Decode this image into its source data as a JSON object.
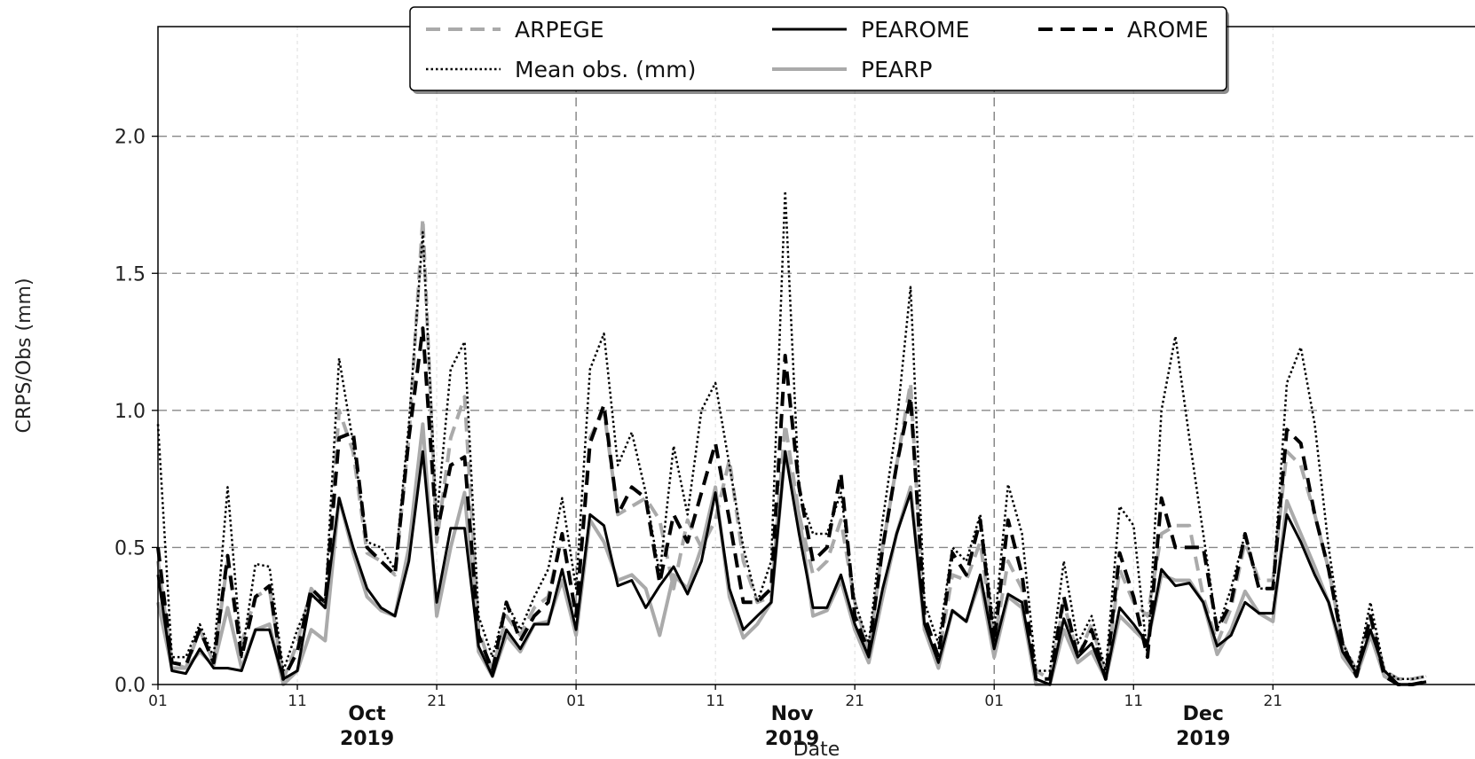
{
  "chart_data": {
    "type": "line",
    "xlabel": "Date",
    "ylabel": "CRPS/Obs (mm)",
    "ylim": [
      0,
      2.4
    ],
    "yticks": [
      "0.0",
      "0.5",
      "1.0",
      "1.5",
      "2.0"
    ],
    "xticks": [
      "01",
      "11",
      "21",
      "01",
      "11",
      "21",
      "01",
      "11",
      "21"
    ],
    "xticks_day": [
      0,
      10,
      20,
      30,
      40,
      50,
      60,
      70,
      80
    ],
    "months": [
      {
        "name": "Oct",
        "year": "2019",
        "day": 15
      },
      {
        "name": "Nov",
        "year": "2019",
        "day": 45.5
      },
      {
        "name": "Dec",
        "year": "2019",
        "day": 75
      }
    ],
    "x_start": "2019-10-01",
    "x_end": "2019-12-31",
    "legend_position": "top-center",
    "grid": true,
    "series": [
      {
        "name": "ARPEGE",
        "color": "#aaaaaa",
        "style": "dashed",
        "width": 4,
        "values": [
          0.45,
          0.08,
          0.06,
          0.2,
          0.08,
          0.45,
          0.15,
          0.32,
          0.35,
          0.02,
          0.15,
          0.35,
          0.28,
          1.0,
          0.85,
          0.48,
          0.45,
          0.4,
          0.9,
          1.7,
          0.52,
          0.9,
          1.05,
          0.2,
          0.05,
          0.25,
          0.18,
          0.28,
          0.32,
          0.55,
          0.25,
          0.9,
          1.0,
          0.62,
          0.65,
          0.68,
          0.6,
          0.35,
          0.6,
          0.5,
          0.6,
          0.82,
          0.45,
          0.3,
          0.32,
          0.95,
          0.62,
          0.4,
          0.45,
          0.6,
          0.3,
          0.12,
          0.5,
          0.8,
          1.1,
          0.2,
          0.1,
          0.4,
          0.38,
          0.52,
          0.15,
          0.45,
          0.35,
          0.05,
          0.02,
          0.3,
          0.1,
          0.22,
          0.03,
          0.42,
          0.3,
          0.25,
          0.55,
          0.58,
          0.58,
          0.32,
          0.15,
          0.28,
          0.52,
          0.38,
          0.38,
          0.85,
          0.8,
          0.62,
          0.42,
          0.15,
          0.05,
          0.25,
          0.05,
          0.02,
          0.02,
          0.03
        ]
      },
      {
        "name": "Mean obs. (mm)",
        "color": "#000000",
        "style": "dotted",
        "width": 2.5,
        "values": [
          0.95,
          0.1,
          0.1,
          0.22,
          0.1,
          0.72,
          0.1,
          0.44,
          0.43,
          0.05,
          0.2,
          0.32,
          0.3,
          1.19,
          0.88,
          0.52,
          0.5,
          0.42,
          0.95,
          1.65,
          0.6,
          1.15,
          1.25,
          0.25,
          0.1,
          0.3,
          0.2,
          0.32,
          0.42,
          0.68,
          0.35,
          1.15,
          1.28,
          0.8,
          0.92,
          0.7,
          0.4,
          0.87,
          0.62,
          1.0,
          1.1,
          0.8,
          0.5,
          0.3,
          0.45,
          1.8,
          0.7,
          0.55,
          0.55,
          0.7,
          0.3,
          0.15,
          0.6,
          0.95,
          1.45,
          0.3,
          0.15,
          0.5,
          0.45,
          0.62,
          0.2,
          0.73,
          0.55,
          0.05,
          0.05,
          0.45,
          0.15,
          0.25,
          0.05,
          0.65,
          0.58,
          0.1,
          1.0,
          1.27,
          0.9,
          0.55,
          0.2,
          0.35,
          0.55,
          0.35,
          0.35,
          1.1,
          1.23,
          0.95,
          0.5,
          0.15,
          0.05,
          0.3,
          0.05,
          0.02,
          0.02,
          0.03
        ]
      },
      {
        "name": "PEAROME",
        "color": "#000000",
        "style": "solid",
        "width": 3,
        "values": [
          0.4,
          0.05,
          0.04,
          0.13,
          0.06,
          0.06,
          0.05,
          0.2,
          0.2,
          0.02,
          0.05,
          0.33,
          0.28,
          0.68,
          0.5,
          0.35,
          0.28,
          0.25,
          0.45,
          0.85,
          0.3,
          0.57,
          0.57,
          0.14,
          0.03,
          0.2,
          0.13,
          0.22,
          0.22,
          0.42,
          0.2,
          0.62,
          0.58,
          0.36,
          0.38,
          0.28,
          0.36,
          0.43,
          0.33,
          0.45,
          0.7,
          0.35,
          0.2,
          0.25,
          0.3,
          0.85,
          0.55,
          0.28,
          0.28,
          0.4,
          0.22,
          0.1,
          0.35,
          0.55,
          0.7,
          0.22,
          0.08,
          0.27,
          0.23,
          0.4,
          0.13,
          0.33,
          0.3,
          0.02,
          0.0,
          0.24,
          0.1,
          0.15,
          0.02,
          0.28,
          0.22,
          0.15,
          0.42,
          0.36,
          0.37,
          0.3,
          0.14,
          0.18,
          0.3,
          0.26,
          0.26,
          0.62,
          0.52,
          0.4,
          0.3,
          0.12,
          0.04,
          0.2,
          0.05,
          0.0,
          0.0,
          0.01
        ]
      },
      {
        "name": "PEARP",
        "color": "#aaaaaa",
        "style": "solid",
        "width": 4,
        "values": [
          0.3,
          0.06,
          0.06,
          0.12,
          0.07,
          0.28,
          0.06,
          0.2,
          0.22,
          0.0,
          0.05,
          0.2,
          0.16,
          0.68,
          0.48,
          0.32,
          0.27,
          0.25,
          0.5,
          0.95,
          0.25,
          0.5,
          0.7,
          0.12,
          0.03,
          0.18,
          0.12,
          0.22,
          0.23,
          0.38,
          0.18,
          0.6,
          0.52,
          0.38,
          0.4,
          0.35,
          0.18,
          0.4,
          0.35,
          0.5,
          0.72,
          0.32,
          0.17,
          0.22,
          0.3,
          0.85,
          0.62,
          0.25,
          0.27,
          0.38,
          0.2,
          0.08,
          0.32,
          0.55,
          0.72,
          0.2,
          0.06,
          0.27,
          0.23,
          0.38,
          0.1,
          0.32,
          0.28,
          0.0,
          0.0,
          0.2,
          0.08,
          0.12,
          0.02,
          0.25,
          0.2,
          0.15,
          0.4,
          0.38,
          0.38,
          0.3,
          0.11,
          0.2,
          0.34,
          0.26,
          0.23,
          0.67,
          0.55,
          0.43,
          0.3,
          0.1,
          0.03,
          0.18,
          0.03,
          0.0,
          0.0,
          0.01
        ]
      },
      {
        "name": "AROME",
        "color": "#000000",
        "style": "dashed",
        "width": 4,
        "values": [
          0.5,
          0.08,
          0.07,
          0.2,
          0.08,
          0.47,
          0.1,
          0.32,
          0.36,
          0.02,
          0.12,
          0.35,
          0.3,
          0.9,
          0.92,
          0.5,
          0.45,
          0.4,
          0.9,
          1.3,
          0.55,
          0.8,
          0.83,
          0.18,
          0.05,
          0.3,
          0.16,
          0.25,
          0.3,
          0.55,
          0.25,
          0.88,
          1.02,
          0.62,
          0.72,
          0.68,
          0.37,
          0.62,
          0.52,
          0.7,
          0.88,
          0.6,
          0.3,
          0.3,
          0.35,
          1.2,
          0.72,
          0.45,
          0.5,
          0.77,
          0.25,
          0.12,
          0.5,
          0.8,
          1.05,
          0.25,
          0.1,
          0.48,
          0.4,
          0.6,
          0.15,
          0.6,
          0.4,
          0.02,
          0.02,
          0.32,
          0.1,
          0.2,
          0.02,
          0.48,
          0.32,
          0.1,
          0.68,
          0.5,
          0.5,
          0.5,
          0.2,
          0.3,
          0.55,
          0.35,
          0.35,
          0.93,
          0.88,
          0.62,
          0.42,
          0.15,
          0.03,
          0.25,
          0.03,
          0.0,
          0.0,
          0.01
        ]
      }
    ]
  }
}
